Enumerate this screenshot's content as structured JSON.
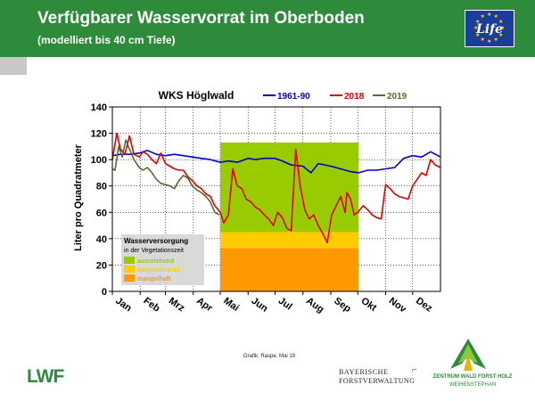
{
  "header": {
    "title": "Verfügbarer Wasservorrat im Oberboden",
    "subtitle": "(modelliert bis 40 cm Tiefe)",
    "eu_logo_text": "Life",
    "color": "#2e8b3c"
  },
  "chart_data": {
    "type": "line",
    "title": "WKS Höglwald",
    "ylabel": "Liter pro Quadratmeter",
    "xlabel": "",
    "ylim": [
      0,
      140
    ],
    "yticks": [
      0,
      20,
      40,
      60,
      80,
      100,
      120,
      140
    ],
    "xlim": [
      1,
      366
    ],
    "month_labels": [
      "Jan",
      "Feb",
      "Mrz",
      "Apr",
      "Mai",
      "Jun",
      "Jul",
      "Aug",
      "Sep",
      "Okt",
      "Nov",
      "Dez"
    ],
    "grid": "dotted",
    "legend_placement": "top",
    "bands": {
      "x_start": 121,
      "x_end": 275,
      "mangelhaft": [
        0,
        33
      ],
      "eingeschraenkt": [
        33,
        45
      ],
      "ausreichend": [
        45,
        113
      ],
      "colors": {
        "ausreichend": "#99cc00",
        "eingeschraenkt": "#ffcc00",
        "mangelhaft": "#ff9900"
      }
    },
    "band_legend": {
      "title": "Wasserversorgung",
      "subtitle": "in der Vegetationszeit",
      "items": [
        {
          "label": "ausreichend",
          "color": "#99cc00"
        },
        {
          "label": "eingeschränkt",
          "color": "#ffcc00"
        },
        {
          "label": "mangelhaft",
          "color": "#ff9900"
        }
      ]
    },
    "series": [
      {
        "name": "1961-90",
        "color": "#0000cc",
        "x": [
          1,
          10,
          20,
          31,
          40,
          50,
          60,
          70,
          80,
          90,
          100,
          110,
          121,
          130,
          140,
          152,
          160,
          170,
          182,
          190,
          200,
          213,
          222,
          230,
          244,
          255,
          265,
          275,
          285,
          295,
          305,
          315,
          325,
          335,
          345,
          355,
          366
        ],
        "y": [
          103,
          104,
          104,
          105,
          107,
          104,
          103,
          104,
          103,
          102,
          101,
          100,
          98,
          99,
          98,
          101,
          100,
          101,
          101,
          99,
          96,
          95,
          90,
          97,
          95,
          93,
          91,
          90,
          92,
          92,
          93,
          94,
          101,
          103,
          102,
          106,
          102
        ]
      },
      {
        "name": "2018",
        "color": "#e00000",
        "x": [
          1,
          6,
          10,
          15,
          20,
          25,
          31,
          35,
          40,
          45,
          50,
          55,
          60,
          65,
          70,
          75,
          80,
          85,
          90,
          95,
          100,
          105,
          110,
          115,
          121,
          125,
          130,
          135,
          140,
          145,
          150,
          155,
          160,
          165,
          170,
          175,
          180,
          185,
          190,
          195,
          200,
          205,
          210,
          215,
          220,
          225,
          230,
          235,
          240,
          245,
          250,
          255,
          260,
          262,
          266,
          270,
          274,
          280,
          285,
          290,
          295,
          300,
          305,
          310,
          315,
          320,
          325,
          330,
          335,
          340,
          345,
          350,
          355,
          360,
          366
        ],
        "y": [
          100,
          120,
          108,
          104,
          118,
          104,
          102,
          106,
          104,
          100,
          97,
          105,
          97,
          95,
          93,
          92,
          92,
          87,
          84,
          80,
          78,
          74,
          72,
          65,
          60,
          52,
          58,
          93,
          80,
          78,
          70,
          68,
          64,
          62,
          58,
          55,
          50,
          60,
          56,
          48,
          46,
          108,
          80,
          62,
          55,
          58,
          50,
          44,
          37,
          58,
          65,
          72,
          60,
          75,
          70,
          58,
          60,
          65,
          62,
          58,
          56,
          55,
          81,
          78,
          74,
          72,
          71,
          70,
          80,
          85,
          90,
          88,
          100,
          96,
          94
        ]
      },
      {
        "name": "2019",
        "color": "#556b2f",
        "x": [
          1,
          4,
          8,
          12,
          16,
          20,
          25,
          31,
          35,
          40,
          45,
          50,
          55,
          60,
          65,
          70,
          75,
          80,
          85,
          90,
          95,
          100,
          105,
          110,
          115,
          120
        ],
        "y": [
          93,
          92,
          110,
          102,
          115,
          108,
          100,
          94,
          92,
          94,
          90,
          85,
          82,
          81,
          80,
          78,
          84,
          88,
          86,
          80,
          77,
          75,
          72,
          68,
          60,
          58
        ]
      }
    ]
  },
  "footer": {
    "credit": "Grafik: Raspe, Mai 19",
    "lwf_logo_text": "LWF",
    "bayern_line1": "BAYERISCHE",
    "bayern_line2": "FORSTVERWALTUNG",
    "zwf_line1": "ZENTRUM WALD FORST HOLZ",
    "zwf_line2": "WEIHENSTEPHAN"
  }
}
